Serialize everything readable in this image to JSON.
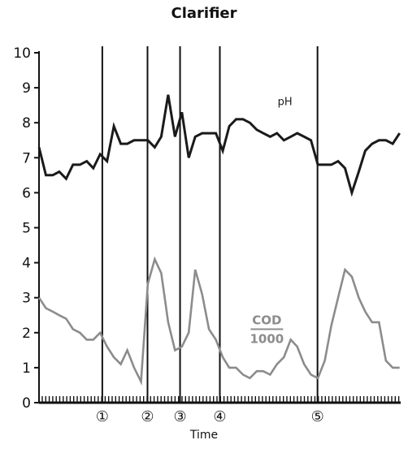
{
  "chart_data": {
    "type": "line",
    "title": "Clarifier",
    "xlabel": "Time",
    "ylabel": "",
    "ylim": [
      0,
      10
    ],
    "yticks": [
      0,
      1,
      2,
      3,
      4,
      5,
      6,
      7,
      8,
      9,
      10
    ],
    "grid": false,
    "xlim": [
      0,
      100
    ],
    "event_markers": [
      {
        "label": "①",
        "x": 17.5
      },
      {
        "label": "②",
        "x": 30.0
      },
      {
        "label": "③",
        "x": 39.0
      },
      {
        "label": "④",
        "x": 50.0
      },
      {
        "label": "⑤",
        "x": 77.0
      }
    ],
    "series": [
      {
        "name": "pH",
        "color": "#1a1a1a",
        "x": [
          0.0,
          1.9,
          3.8,
          5.6,
          7.5,
          9.4,
          11.3,
          13.2,
          15.0,
          16.9,
          18.8,
          20.7,
          22.6,
          24.4,
          26.3,
          28.2,
          30.1,
          32.0,
          33.8,
          35.7,
          37.6,
          39.5,
          41.4,
          43.2,
          45.1,
          47.0,
          48.9,
          50.8,
          52.6,
          54.5,
          56.4,
          58.3,
          60.2,
          62.0,
          63.9,
          65.8,
          67.7,
          69.6,
          71.4,
          73.3,
          75.2,
          77.1,
          79.0,
          80.8,
          82.7,
          84.6,
          86.5,
          88.4,
          90.2,
          92.1,
          94.0,
          95.9,
          97.8,
          99.7
        ],
        "values": [
          7.3,
          6.5,
          6.5,
          6.6,
          6.4,
          6.8,
          6.8,
          6.9,
          6.7,
          7.1,
          6.9,
          7.9,
          7.4,
          7.4,
          7.5,
          7.5,
          7.5,
          7.3,
          7.6,
          8.8,
          7.6,
          8.3,
          7.0,
          7.6,
          7.7,
          7.7,
          7.7,
          7.2,
          7.9,
          8.1,
          8.1,
          8.0,
          7.8,
          7.7,
          7.6,
          7.7,
          7.5,
          7.6,
          7.7,
          7.6,
          7.5,
          6.8,
          6.8,
          6.8,
          6.9,
          6.7,
          6.0,
          6.6,
          7.2,
          7.4,
          7.5,
          7.5,
          7.4,
          7.7
        ],
        "label_text": "pH",
        "label_at": {
          "x": 68,
          "y": 8.5
        }
      },
      {
        "name": "COD/1000",
        "color": "#8c8c8c",
        "x": [
          0.0,
          1.9,
          3.8,
          5.6,
          7.5,
          9.4,
          11.3,
          13.2,
          15.0,
          16.9,
          18.8,
          20.7,
          22.6,
          24.4,
          26.3,
          28.2,
          30.1,
          32.0,
          33.8,
          35.7,
          37.6,
          39.5,
          41.4,
          43.2,
          45.1,
          47.0,
          48.9,
          50.8,
          52.6,
          54.5,
          56.4,
          58.3,
          60.2,
          62.0,
          63.9,
          65.8,
          67.7,
          69.6,
          71.4,
          73.3,
          75.2,
          77.1,
          79.0,
          80.8,
          82.7,
          84.6,
          86.5,
          88.4,
          90.2,
          92.1,
          94.0,
          95.9,
          97.8,
          99.7
        ],
        "values": [
          3.0,
          2.7,
          2.6,
          2.5,
          2.4,
          2.1,
          2.0,
          1.8,
          1.8,
          2.0,
          1.6,
          1.3,
          1.1,
          1.5,
          1.0,
          0.6,
          3.4,
          4.1,
          3.7,
          2.3,
          1.5,
          1.6,
          2.0,
          3.8,
          3.1,
          2.1,
          1.8,
          1.3,
          1.0,
          1.0,
          0.8,
          0.7,
          0.9,
          0.9,
          0.8,
          1.1,
          1.3,
          1.8,
          1.6,
          1.1,
          0.8,
          0.7,
          1.2,
          2.2,
          3.0,
          3.8,
          3.6,
          3.0,
          2.6,
          2.3,
          2.3,
          1.2,
          1.0,
          1.0
        ],
        "label_numerator": "COD",
        "label_denominator": "1000",
        "label_at": {
          "x": 63,
          "y": 2.1
        }
      }
    ]
  }
}
